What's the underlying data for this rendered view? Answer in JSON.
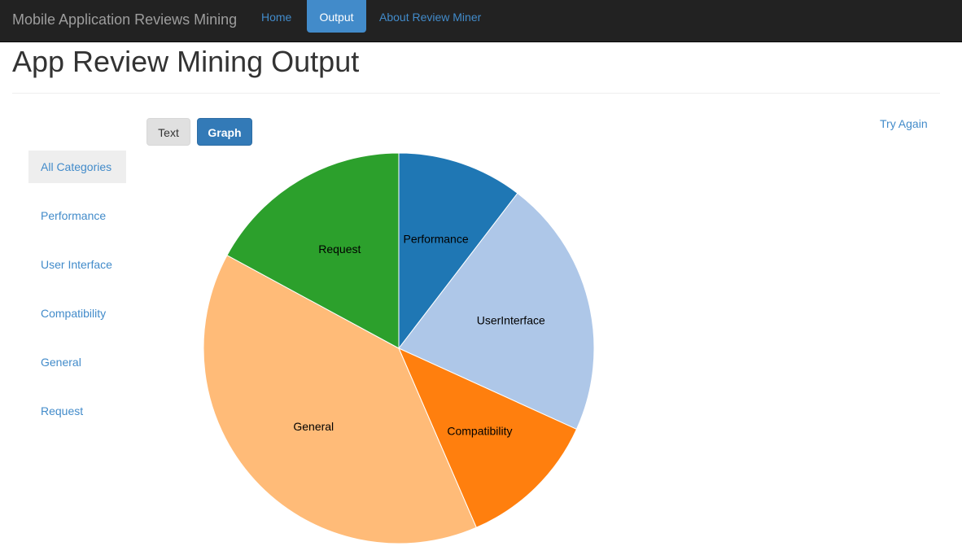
{
  "navbar": {
    "brand": "Mobile Application Reviews Mining",
    "items": [
      "Home",
      "Output",
      "About Review Miner"
    ],
    "active": "Output"
  },
  "page": {
    "title": "App Review Mining Output",
    "try_again": "Try Again"
  },
  "view_toggle": {
    "text_label": "Text",
    "graph_label": "Graph",
    "active": "Graph"
  },
  "sidebar": {
    "items": [
      "All Categories",
      "Performance",
      "User Interface",
      "Compatibility",
      "General",
      "Request"
    ],
    "active": "All Categories"
  },
  "chart_data": {
    "type": "pie",
    "title": "",
    "slices": [
      {
        "label": "Performance",
        "value": 10.4,
        "color": "#1f77b4"
      },
      {
        "label": "UserInterface",
        "value": 21.4,
        "color": "#aec7e8"
      },
      {
        "label": "Compatibility",
        "value": 11.7,
        "color": "#ff7f0e"
      },
      {
        "label": "General",
        "value": 39.4,
        "color": "#ffbb78"
      },
      {
        "label": "Request",
        "value": 17.1,
        "color": "#2ca02c"
      }
    ]
  }
}
